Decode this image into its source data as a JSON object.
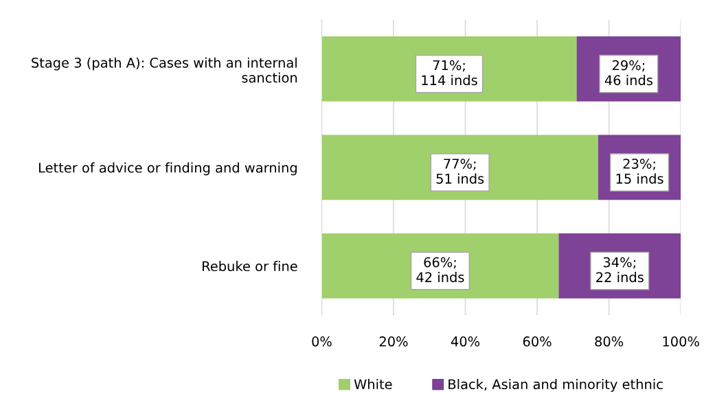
{
  "chart_data": {
    "type": "bar",
    "orientation": "horizontal",
    "stacked": true,
    "categories": [
      "Stage 3 (path A): Cases with an internal sanction",
      "Letter of advice or finding and warning",
      "Rebuke or fine"
    ],
    "series": [
      {
        "name": "White",
        "color": "#a0d06b",
        "values": [
          71,
          77,
          66
        ],
        "value_labels": [
          "71%;\n114 inds",
          "77%;\n51 inds",
          "66%;\n42 inds"
        ]
      },
      {
        "name": "Black, Asian and minority ethnic",
        "color": "#7e4296",
        "values": [
          29,
          23,
          34
        ],
        "value_labels": [
          "29%;\n46 inds",
          "23%;\n15 inds",
          "34%;\n22 inds"
        ]
      }
    ],
    "xlim": [
      0,
      100
    ],
    "xticks": [
      {
        "value": 0,
        "label": "0%"
      },
      {
        "value": 20,
        "label": "20%"
      },
      {
        "value": 40,
        "label": "40%"
      },
      {
        "value": 60,
        "label": "60%"
      },
      {
        "value": 80,
        "label": "80%"
      },
      {
        "value": 100,
        "label": "100%"
      }
    ],
    "grid": "x",
    "legend": "bottom"
  }
}
